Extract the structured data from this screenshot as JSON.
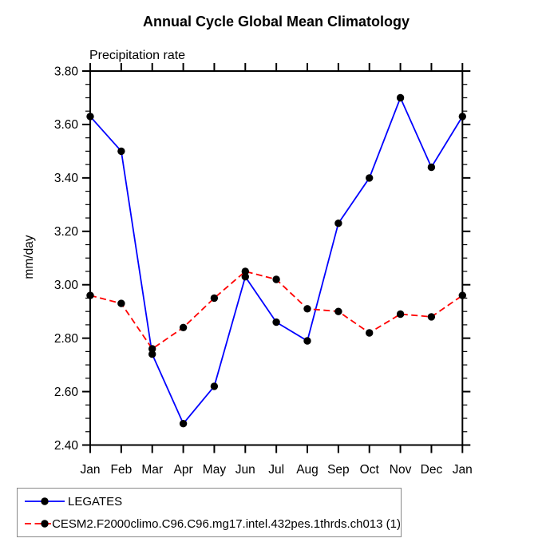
{
  "title": "Annual Cycle Global Mean Climatology",
  "subtitle": "Precipitation rate",
  "ylabel": "mm/day",
  "colors": {
    "series1_line": "#0000ff",
    "series2_line": "#ff0000",
    "marker": "#000000",
    "axis": "#000000",
    "background": "#ffffff",
    "legend_border": "#888888"
  },
  "chart_data": {
    "type": "line",
    "title": "Annual Cycle Global Mean Climatology",
    "subtitle": "Precipitation rate",
    "xlabel": "",
    "ylabel": "mm/day",
    "categories": [
      "Jan",
      "Feb",
      "Mar",
      "Apr",
      "May",
      "Jun",
      "Jul",
      "Aug",
      "Sep",
      "Oct",
      "Nov",
      "Dec",
      "Jan"
    ],
    "ylim": [
      2.4,
      3.8
    ],
    "ytick_step": 0.2,
    "yminor_step": 0.05,
    "ytick_labels": [
      "2.40",
      "2.60",
      "2.80",
      "3.00",
      "3.20",
      "3.40",
      "3.60",
      "3.80"
    ],
    "grid": false,
    "legend_position": "bottom-left",
    "marker": "black-dot",
    "series": [
      {
        "name": "LEGATES",
        "color": "#0000ff",
        "style": "solid",
        "values": [
          3.63,
          3.5,
          2.74,
          2.48,
          2.62,
          3.03,
          2.86,
          2.79,
          3.23,
          3.4,
          3.7,
          3.44,
          3.63
        ]
      },
      {
        "name": "CESM2.F2000climo.C96.C96.mg17.intel.432pes.1thrds.ch013 (1)",
        "color": "#ff0000",
        "style": "dashed",
        "values": [
          2.96,
          2.93,
          2.76,
          2.84,
          2.95,
          3.05,
          3.02,
          2.91,
          2.9,
          2.82,
          2.89,
          2.88,
          2.96
        ]
      }
    ]
  }
}
